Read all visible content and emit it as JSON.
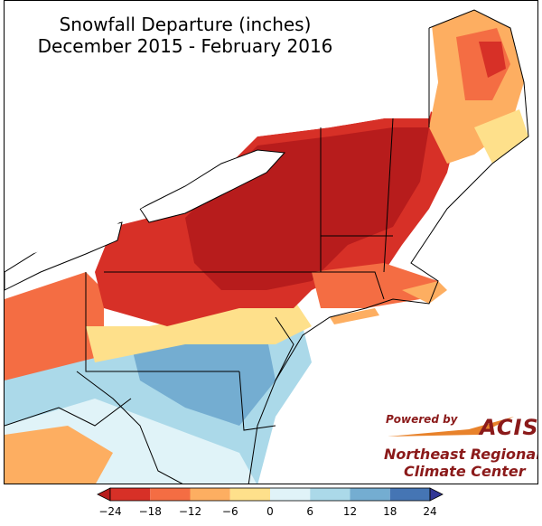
{
  "title_line1": "Snowfall Departure (inches)",
  "title_line2": "December 2015 - February 2016",
  "credit": {
    "powered_by": "Powered by",
    "acis": "ACIS",
    "center_line1": "Northeast Regional",
    "center_line2": "Climate Center"
  },
  "colorbar": {
    "ticks": [
      "−24",
      "−18",
      "−12",
      "−6",
      "0",
      "6",
      "12",
      "18",
      "24"
    ],
    "colors": [
      "#b71c1c",
      "#d73027",
      "#f46d43",
      "#fdae61",
      "#fee08b",
      "#e0f3f8",
      "#abd9e9",
      "#74add1",
      "#4575b4",
      "#313695"
    ]
  }
}
